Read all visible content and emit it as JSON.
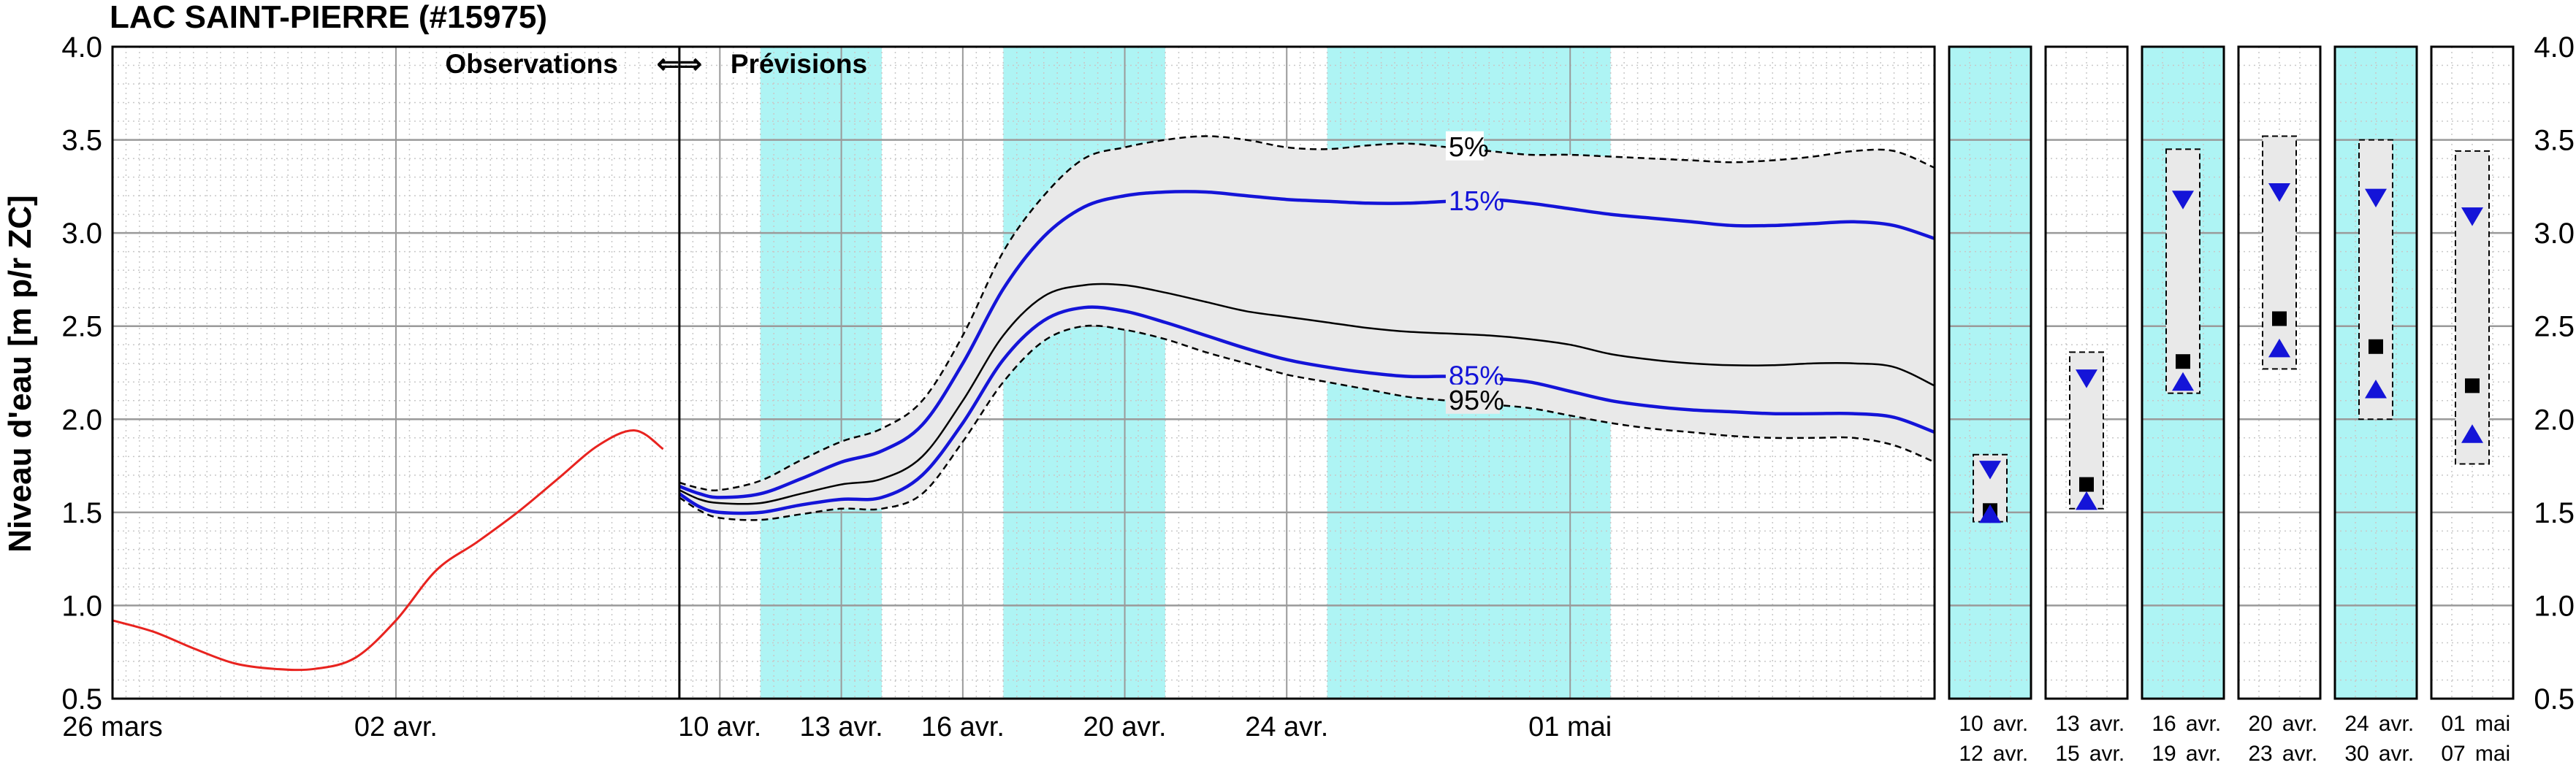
{
  "chart_data": {
    "type": "line",
    "title": "LAC SAINT-PIERRE (#15975)",
    "ylabel": "Niveau d'eau [m p/r ZC]",
    "xlabel": "",
    "ylim": [
      0.5,
      4.0
    ],
    "yticks": [
      "0.5",
      "1.0",
      "1.5",
      "2.0",
      "2.5",
      "3.0",
      "3.5",
      "4.0"
    ],
    "grid": true,
    "xaxis_unit": "days from 26 mars",
    "xlim": [
      0,
      45
    ],
    "obs_label": "Observations",
    "fc_label": "Prévisions",
    "arrows": "⇐⇒",
    "xtick_labels": [
      {
        "day": 0,
        "label": "26 mars"
      },
      {
        "day": 7,
        "label": "02 avr."
      },
      {
        "day": 15,
        "label": "10 avr."
      },
      {
        "day": 18,
        "label": "13 avr."
      },
      {
        "day": 21,
        "label": "16 avr."
      },
      {
        "day": 25,
        "label": "20 avr."
      },
      {
        "day": 29,
        "label": "24 avr."
      },
      {
        "day": 36,
        "label": "01 mai"
      }
    ],
    "shaded_periods": [
      [
        16,
        19
      ],
      [
        22,
        26
      ],
      [
        30,
        37
      ]
    ],
    "series": [
      {
        "name": "",
        "role": "observed",
        "color": "#e8231f",
        "x": [
          0,
          1,
          2,
          3,
          4,
          5,
          6,
          7,
          8,
          9,
          10,
          11,
          12,
          12.9,
          13.6
        ],
        "y": [
          0.92,
          0.86,
          0.77,
          0.69,
          0.66,
          0.66,
          0.72,
          0.92,
          1.19,
          1.34,
          1.5,
          1.68,
          1.86,
          1.94,
          1.84
        ]
      },
      {
        "name": "5%",
        "role": "envelope-upper",
        "color": "#000000",
        "dash": true,
        "x": [
          14,
          14.5,
          15,
          16,
          17,
          18,
          19,
          20,
          21,
          22,
          23,
          24,
          25,
          26,
          27,
          28,
          29,
          30,
          31,
          32,
          33,
          34,
          35,
          36,
          37,
          38,
          39,
          40,
          41,
          42,
          43,
          44,
          45
        ],
        "y": [
          1.66,
          1.63,
          1.62,
          1.67,
          1.78,
          1.88,
          1.95,
          2.1,
          2.45,
          2.9,
          3.2,
          3.4,
          3.46,
          3.5,
          3.52,
          3.5,
          3.46,
          3.45,
          3.47,
          3.48,
          3.46,
          3.44,
          3.42,
          3.42,
          3.41,
          3.4,
          3.39,
          3.38,
          3.39,
          3.41,
          3.44,
          3.44,
          3.35
        ]
      },
      {
        "name": "15%",
        "role": "quantile",
        "color": "#1414d8",
        "x": [
          14,
          14.5,
          15,
          16,
          17,
          18,
          19,
          20,
          21,
          22,
          23,
          24,
          25,
          26,
          27,
          28,
          29,
          30,
          31,
          32,
          33,
          34,
          35,
          36,
          37,
          38,
          39,
          40,
          41,
          42,
          43,
          44,
          45
        ],
        "y": [
          1.64,
          1.6,
          1.58,
          1.6,
          1.68,
          1.77,
          1.83,
          1.97,
          2.3,
          2.7,
          2.98,
          3.14,
          3.2,
          3.22,
          3.22,
          3.2,
          3.18,
          3.17,
          3.16,
          3.16,
          3.17,
          3.18,
          3.16,
          3.13,
          3.1,
          3.08,
          3.06,
          3.04,
          3.04,
          3.05,
          3.06,
          3.04,
          2.97
        ]
      },
      {
        "name": "",
        "role": "median",
        "color": "#000000",
        "x": [
          14,
          14.5,
          15,
          16,
          17,
          18,
          19,
          20,
          21,
          22,
          23,
          24,
          25,
          26,
          27,
          28,
          29,
          30,
          31,
          32,
          33,
          34,
          35,
          36,
          37,
          38,
          39,
          40,
          41,
          42,
          43,
          44,
          45
        ],
        "y": [
          1.62,
          1.57,
          1.55,
          1.55,
          1.6,
          1.65,
          1.68,
          1.8,
          2.1,
          2.45,
          2.66,
          2.72,
          2.72,
          2.68,
          2.63,
          2.58,
          2.55,
          2.52,
          2.49,
          2.47,
          2.46,
          2.45,
          2.43,
          2.4,
          2.35,
          2.32,
          2.3,
          2.29,
          2.29,
          2.3,
          2.3,
          2.28,
          2.18
        ]
      },
      {
        "name": "85%",
        "role": "quantile",
        "color": "#1414d8",
        "x": [
          14,
          14.5,
          15,
          16,
          17,
          18,
          19,
          20,
          21,
          22,
          23,
          24,
          25,
          26,
          27,
          28,
          29,
          30,
          31,
          32,
          33,
          34,
          35,
          36,
          37,
          38,
          39,
          40,
          41,
          42,
          43,
          44,
          45
        ],
        "y": [
          1.6,
          1.53,
          1.5,
          1.5,
          1.54,
          1.57,
          1.58,
          1.7,
          1.98,
          2.32,
          2.53,
          2.6,
          2.58,
          2.52,
          2.45,
          2.38,
          2.32,
          2.28,
          2.25,
          2.23,
          2.23,
          2.22,
          2.2,
          2.15,
          2.1,
          2.07,
          2.05,
          2.04,
          2.03,
          2.03,
          2.03,
          2.01,
          1.93
        ]
      },
      {
        "name": "95%",
        "role": "envelope-lower",
        "color": "#000000",
        "dash": true,
        "x": [
          14,
          14.5,
          15,
          16,
          17,
          18,
          19,
          20,
          21,
          22,
          23,
          24,
          25,
          26,
          27,
          28,
          29,
          30,
          31,
          32,
          33,
          34,
          35,
          36,
          37,
          38,
          39,
          40,
          41,
          42,
          43,
          44,
          45
        ],
        "y": [
          1.58,
          1.51,
          1.47,
          1.46,
          1.49,
          1.52,
          1.52,
          1.6,
          1.88,
          2.2,
          2.42,
          2.5,
          2.48,
          2.43,
          2.36,
          2.3,
          2.24,
          2.2,
          2.16,
          2.12,
          2.1,
          2.08,
          2.06,
          2.02,
          1.98,
          1.95,
          1.93,
          1.91,
          1.9,
          1.9,
          1.9,
          1.86,
          1.77
        ]
      }
    ],
    "weekly_panels": [
      {
        "from_day": "10",
        "from_month": "avr.",
        "to_day": "12",
        "to_month": "avr.",
        "shaded": true,
        "box": [
          1.45,
          1.81
        ],
        "p15": 1.73,
        "median": 1.51,
        "p85": 1.49
      },
      {
        "from_day": "13",
        "from_month": "avr.",
        "to_day": "15",
        "to_month": "avr.",
        "shaded": false,
        "box": [
          1.52,
          2.36
        ],
        "p15": 2.22,
        "median": 1.65,
        "p85": 1.56
      },
      {
        "from_day": "16",
        "from_month": "avr.",
        "to_day": "19",
        "to_month": "avr.",
        "shaded": true,
        "box": [
          2.14,
          3.45
        ],
        "p15": 3.18,
        "median": 2.31,
        "p85": 2.2
      },
      {
        "from_day": "20",
        "from_month": "avr.",
        "to_day": "23",
        "to_month": "avr.",
        "shaded": false,
        "box": [
          2.27,
          3.52
        ],
        "p15": 3.22,
        "median": 2.54,
        "p85": 2.38
      },
      {
        "from_day": "24",
        "from_month": "avr.",
        "to_day": "30",
        "to_month": "avr.",
        "shaded": true,
        "box": [
          2.0,
          3.5
        ],
        "p15": 3.19,
        "median": 2.39,
        "p85": 2.16
      },
      {
        "from_day": "01",
        "from_month": "mai",
        "to_day": "07",
        "to_month": "mai",
        "shaded": false,
        "box": [
          1.76,
          3.44
        ],
        "p15": 3.09,
        "median": 2.18,
        "p85": 1.92
      }
    ],
    "colors": {
      "shade": "#aef4f4",
      "band": "#e9e9e9",
      "quantile": "#1414d8",
      "observed": "#e8231f",
      "marker_blue": "#1414d8",
      "marker_black": "#000000"
    }
  }
}
